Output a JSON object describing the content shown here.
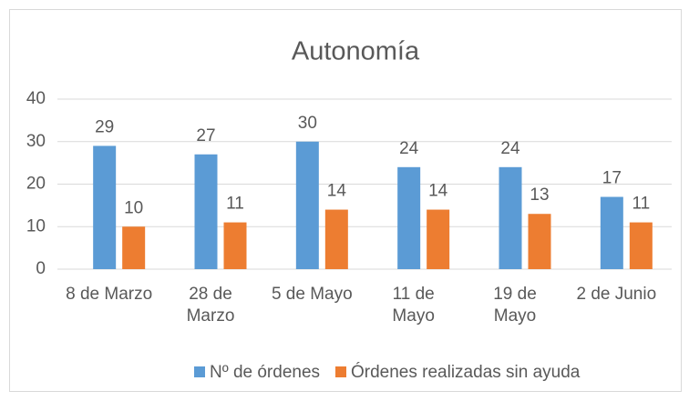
{
  "chart_data": {
    "type": "bar",
    "title": "Autonomía",
    "categories": [
      "8 de Marzo",
      "28 de Marzo",
      "5 de Mayo",
      "11 de Mayo",
      "19 de Mayo",
      "2 de Junio"
    ],
    "series": [
      {
        "name": "Nº de órdenes",
        "color": "#5b9bd5",
        "values": [
          29,
          27,
          30,
          24,
          24,
          17
        ]
      },
      {
        "name": "Órdenes realizadas sin ayuda",
        "color": "#ed7d31",
        "values": [
          10,
          11,
          14,
          14,
          13,
          11
        ]
      }
    ],
    "ylim": [
      0,
      40
    ],
    "yticks": [
      0,
      10,
      20,
      30,
      40
    ],
    "grid": true,
    "legend": "bottom"
  }
}
